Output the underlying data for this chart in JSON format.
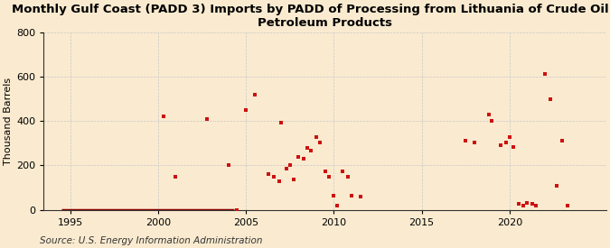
{
  "title": "Monthly Gulf Coast (PADD 3) Imports by PADD of Processing from Lithuania of Crude Oil and\nPetroleum Products",
  "ylabel": "Thousand Barrels",
  "source": "Source: U.S. Energy Information Administration",
  "bg_color": "#faebd0",
  "plot_bg_color": "#faebd0",
  "marker_color": "#cc1111",
  "line_color": "#8b0000",
  "xlim": [
    1993.5,
    2025.5
  ],
  "ylim": [
    0,
    800
  ],
  "yticks": [
    0,
    200,
    400,
    600,
    800
  ],
  "xticks": [
    1995,
    2000,
    2005,
    2010,
    2015,
    2020
  ],
  "data_points": [
    [
      2000.3,
      420
    ],
    [
      2001.0,
      150
    ],
    [
      2002.8,
      410
    ],
    [
      2004.0,
      200
    ],
    [
      2004.5,
      0
    ],
    [
      2005.0,
      450
    ],
    [
      2005.5,
      520
    ],
    [
      2006.3,
      160
    ],
    [
      2006.6,
      150
    ],
    [
      2006.9,
      130
    ],
    [
      2007.0,
      395
    ],
    [
      2007.3,
      185
    ],
    [
      2007.5,
      200
    ],
    [
      2007.7,
      135
    ],
    [
      2008.0,
      240
    ],
    [
      2008.3,
      230
    ],
    [
      2008.5,
      280
    ],
    [
      2008.7,
      265
    ],
    [
      2009.0,
      330
    ],
    [
      2009.2,
      305
    ],
    [
      2009.5,
      175
    ],
    [
      2009.7,
      150
    ],
    [
      2010.0,
      65
    ],
    [
      2010.2,
      20
    ],
    [
      2010.5,
      175
    ],
    [
      2010.8,
      150
    ],
    [
      2011.0,
      65
    ],
    [
      2011.5,
      60
    ],
    [
      2017.5,
      310
    ],
    [
      2018.0,
      305
    ],
    [
      2018.8,
      430
    ],
    [
      2019.0,
      400
    ],
    [
      2019.5,
      290
    ],
    [
      2019.8,
      305
    ],
    [
      2020.0,
      330
    ],
    [
      2020.2,
      285
    ],
    [
      2020.5,
      25
    ],
    [
      2020.8,
      20
    ],
    [
      2021.0,
      30
    ],
    [
      2021.3,
      25
    ],
    [
      2021.5,
      20
    ],
    [
      2022.0,
      615
    ],
    [
      2022.3,
      500
    ],
    [
      2022.7,
      110
    ],
    [
      2023.0,
      310
    ],
    [
      2023.3,
      20
    ]
  ],
  "zero_line_start": 1994.5,
  "zero_line_end": 2004.3,
  "title_fontsize": 9.5,
  "tick_fontsize": 8,
  "ylabel_fontsize": 8,
  "source_fontsize": 7.5
}
